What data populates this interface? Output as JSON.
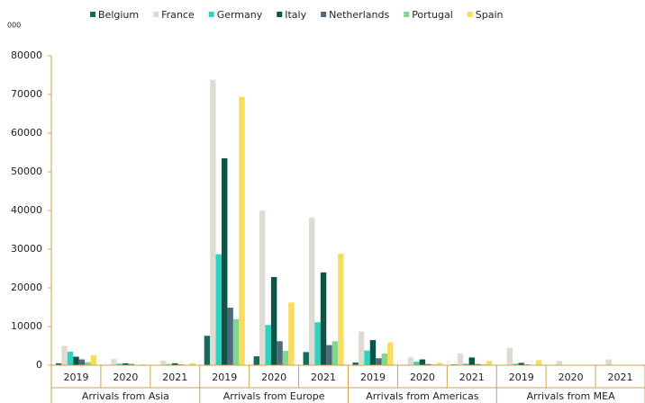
{
  "chart_data": {
    "type": "bar",
    "y_unit_label": "000",
    "categories": [
      "2019",
      "2020",
      "2021",
      "2019",
      "2020",
      "2021",
      "2019",
      "2020",
      "2021",
      "2019",
      "2020",
      "2021"
    ],
    "category_groups": [
      "Arrivals from Asia",
      "Arrivals from Europe",
      "Arrivals from Americas",
      "Arrivals from MEA"
    ],
    "series": [
      {
        "name": "Belgium",
        "color": "#17695b",
        "values": [
          500,
          100,
          100,
          7600,
          2300,
          3400,
          700,
          100,
          200,
          100,
          0,
          0
        ]
      },
      {
        "name": "France",
        "color": "#dfdbd2",
        "values": [
          5000,
          1600,
          1200,
          73800,
          40000,
          38200,
          8700,
          2100,
          3000,
          4500,
          1100,
          1500
        ]
      },
      {
        "name": "Germany",
        "color": "#2dd2c1",
        "values": [
          3500,
          400,
          300,
          28700,
          10400,
          11100,
          3800,
          900,
          400,
          400,
          100,
          100
        ]
      },
      {
        "name": "Italy",
        "color": "#0a5546",
        "values": [
          2200,
          500,
          500,
          53500,
          22800,
          24000,
          6500,
          1500,
          2000,
          600,
          100,
          100
        ]
      },
      {
        "name": "Netherlands",
        "color": "#4f6a7c",
        "values": [
          1500,
          300,
          200,
          14900,
          6200,
          5200,
          1800,
          300,
          300,
          200,
          50,
          0
        ]
      },
      {
        "name": "Portugal",
        "color": "#7fd790",
        "values": [
          800,
          100,
          100,
          11900,
          3700,
          6200,
          3000,
          200,
          200,
          100,
          0,
          0
        ]
      },
      {
        "name": "Spain",
        "color": "#f8dc5e",
        "values": [
          2600,
          200,
          500,
          69400,
          16200,
          28800,
          5900,
          600,
          1100,
          1300,
          100,
          100
        ]
      }
    ],
    "ylim": [
      0,
      80000
    ],
    "yticks": [
      0,
      10000,
      20000,
      30000,
      40000,
      50000,
      60000,
      70000,
      80000
    ],
    "legend": "top",
    "axis_color": "#c9a34b"
  }
}
